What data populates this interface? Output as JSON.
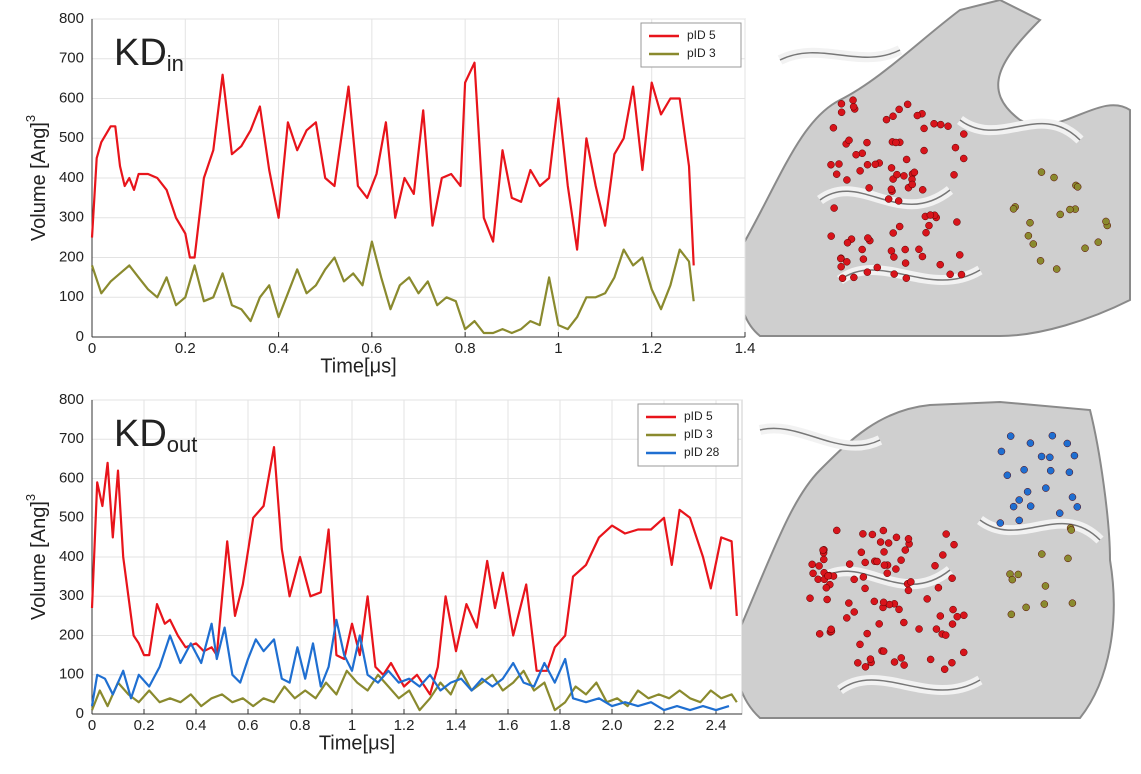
{
  "chart_data": [
    {
      "type": "line",
      "title": "KD",
      "title_subscript": "in",
      "xlabel": "Time[μs]",
      "ylabel": "Volume [Ang]",
      "ylabel_superscript": "3",
      "xlim": [
        0,
        1.4
      ],
      "ylim": [
        0,
        800
      ],
      "xticks": [
        0,
        0.2,
        0.4,
        0.6,
        0.8,
        1,
        1.2,
        1.4
      ],
      "yticks": [
        0,
        100,
        200,
        300,
        400,
        500,
        600,
        700,
        800
      ],
      "grid": true,
      "legend": "upper right",
      "series": [
        {
          "name": "pID 5",
          "color": "#e8141b",
          "x": [
            0,
            0.01,
            0.02,
            0.04,
            0.05,
            0.06,
            0.07,
            0.08,
            0.09,
            0.1,
            0.12,
            0.14,
            0.16,
            0.18,
            0.2,
            0.21,
            0.22,
            0.24,
            0.26,
            0.28,
            0.3,
            0.32,
            0.34,
            0.36,
            0.38,
            0.4,
            0.42,
            0.44,
            0.46,
            0.48,
            0.5,
            0.52,
            0.55,
            0.57,
            0.59,
            0.61,
            0.63,
            0.65,
            0.67,
            0.69,
            0.71,
            0.73,
            0.75,
            0.77,
            0.79,
            0.8,
            0.82,
            0.84,
            0.86,
            0.88,
            0.9,
            0.92,
            0.94,
            0.96,
            0.98,
            1,
            1.02,
            1.04,
            1.06,
            1.08,
            1.1,
            1.12,
            1.14,
            1.16,
            1.18,
            1.2,
            1.22,
            1.24,
            1.26,
            1.28,
            1.29
          ],
          "values": [
            250,
            450,
            490,
            530,
            530,
            430,
            380,
            400,
            370,
            410,
            410,
            400,
            370,
            300,
            260,
            200,
            200,
            400,
            470,
            660,
            460,
            480,
            520,
            580,
            420,
            300,
            540,
            470,
            520,
            540,
            400,
            380,
            630,
            380,
            350,
            410,
            540,
            300,
            400,
            360,
            570,
            280,
            400,
            410,
            380,
            640,
            690,
            300,
            240,
            470,
            350,
            340,
            420,
            380,
            400,
            600,
            380,
            220,
            500,
            380,
            280,
            460,
            500,
            630,
            420,
            640,
            560,
            600,
            600,
            430,
            180
          ]
        },
        {
          "name": "pID 3",
          "color": "#8a8a2e",
          "x": [
            0,
            0.02,
            0.04,
            0.06,
            0.08,
            0.1,
            0.12,
            0.14,
            0.16,
            0.18,
            0.2,
            0.22,
            0.24,
            0.26,
            0.28,
            0.3,
            0.32,
            0.34,
            0.36,
            0.38,
            0.4,
            0.42,
            0.44,
            0.46,
            0.48,
            0.5,
            0.52,
            0.54,
            0.56,
            0.58,
            0.6,
            0.62,
            0.64,
            0.66,
            0.68,
            0.7,
            0.72,
            0.74,
            0.76,
            0.78,
            0.8,
            0.82,
            0.84,
            0.86,
            0.88,
            0.9,
            0.92,
            0.94,
            0.96,
            0.98,
            1,
            1.02,
            1.04,
            1.06,
            1.08,
            1.1,
            1.12,
            1.14,
            1.16,
            1.18,
            1.2,
            1.22,
            1.24,
            1.26,
            1.28,
            1.29
          ],
          "values": [
            180,
            110,
            140,
            160,
            180,
            150,
            120,
            100,
            150,
            80,
            100,
            180,
            90,
            100,
            160,
            80,
            70,
            40,
            100,
            130,
            50,
            110,
            170,
            110,
            130,
            170,
            200,
            140,
            160,
            130,
            240,
            150,
            70,
            130,
            150,
            110,
            140,
            80,
            100,
            90,
            20,
            40,
            10,
            10,
            20,
            10,
            20,
            40,
            30,
            150,
            30,
            20,
            50,
            100,
            100,
            110,
            150,
            220,
            180,
            200,
            120,
            70,
            130,
            220,
            190,
            90
          ]
        }
      ]
    },
    {
      "type": "line",
      "title": "KD",
      "title_subscript": "out",
      "xlabel": "Time[μs]",
      "ylabel": "Volume [Ang]",
      "ylabel_superscript": "3",
      "xlim": [
        0,
        2.5
      ],
      "ylim": [
        0,
        800
      ],
      "xticks": [
        0,
        0.2,
        0.4,
        0.6,
        0.8,
        1,
        1.2,
        1.4,
        1.6,
        1.8,
        {
          "value": 2,
          "label": "2.0"
        },
        2.2,
        2.4
      ],
      "yticks": [
        0,
        100,
        200,
        300,
        400,
        500,
        600,
        700,
        800
      ],
      "grid": true,
      "legend": "upper right",
      "series": [
        {
          "name": "pID 5",
          "color": "#e8141b",
          "x": [
            0,
            0.02,
            0.04,
            0.06,
            0.08,
            0.1,
            0.12,
            0.14,
            0.16,
            0.18,
            0.2,
            0.22,
            0.25,
            0.28,
            0.3,
            0.33,
            0.36,
            0.4,
            0.43,
            0.46,
            0.48,
            0.52,
            0.55,
            0.58,
            0.62,
            0.66,
            0.7,
            0.73,
            0.76,
            0.8,
            0.84,
            0.88,
            0.91,
            0.94,
            0.97,
            1,
            1.03,
            1.06,
            1.09,
            1.12,
            1.15,
            1.2,
            1.25,
            1.3,
            1.33,
            1.36,
            1.4,
            1.44,
            1.48,
            1.52,
            1.55,
            1.58,
            1.62,
            1.67,
            1.71,
            1.75,
            1.78,
            1.82,
            1.85,
            1.9,
            1.95,
            2,
            2.05,
            2.1,
            2.15,
            2.2,
            2.23,
            2.26,
            2.3,
            2.35,
            2.38,
            2.42,
            2.46,
            2.48
          ],
          "values": [
            270,
            590,
            530,
            640,
            450,
            620,
            400,
            300,
            200,
            180,
            150,
            150,
            280,
            230,
            240,
            200,
            170,
            180,
            160,
            170,
            150,
            440,
            250,
            330,
            500,
            530,
            680,
            420,
            300,
            400,
            300,
            310,
            470,
            150,
            140,
            230,
            150,
            300,
            120,
            100,
            130,
            70,
            100,
            50,
            120,
            300,
            160,
            280,
            220,
            390,
            270,
            360,
            200,
            330,
            110,
            110,
            170,
            200,
            350,
            380,
            450,
            480,
            460,
            470,
            470,
            500,
            380,
            520,
            500,
            400,
            320,
            450,
            440,
            250
          ]
        },
        {
          "name": "pID 3",
          "color": "#8a8a2e",
          "x": [
            0,
            0.03,
            0.06,
            0.1,
            0.14,
            0.18,
            0.22,
            0.26,
            0.3,
            0.34,
            0.38,
            0.42,
            0.46,
            0.5,
            0.54,
            0.58,
            0.62,
            0.66,
            0.7,
            0.74,
            0.78,
            0.82,
            0.86,
            0.9,
            0.94,
            0.98,
            1.02,
            1.06,
            1.1,
            1.14,
            1.18,
            1.22,
            1.26,
            1.3,
            1.34,
            1.38,
            1.42,
            1.46,
            1.5,
            1.54,
            1.58,
            1.62,
            1.66,
            1.7,
            1.74,
            1.78,
            1.82,
            1.86,
            1.9,
            1.94,
            1.98,
            2.02,
            2.06,
            2.1,
            2.14,
            2.18,
            2.22,
            2.26,
            2.3,
            2.34,
            2.38,
            2.42,
            2.46,
            2.48
          ],
          "values": [
            10,
            60,
            20,
            80,
            50,
            30,
            60,
            30,
            40,
            30,
            50,
            20,
            40,
            50,
            30,
            40,
            20,
            40,
            30,
            70,
            40,
            60,
            40,
            80,
            50,
            110,
            80,
            60,
            100,
            70,
            40,
            60,
            10,
            40,
            80,
            50,
            110,
            60,
            80,
            100,
            60,
            80,
            110,
            60,
            80,
            10,
            30,
            70,
            50,
            80,
            30,
            40,
            20,
            60,
            40,
            50,
            40,
            60,
            40,
            30,
            60,
            40,
            50,
            30
          ]
        },
        {
          "name": "pID 28",
          "color": "#1f6fd1",
          "x": [
            0,
            0.02,
            0.05,
            0.08,
            0.12,
            0.15,
            0.18,
            0.22,
            0.26,
            0.3,
            0.34,
            0.38,
            0.42,
            0.46,
            0.48,
            0.51,
            0.54,
            0.57,
            0.6,
            0.63,
            0.66,
            0.7,
            0.73,
            0.76,
            0.79,
            0.82,
            0.85,
            0.88,
            0.91,
            0.94,
            0.97,
            1,
            1.03,
            1.06,
            1.1,
            1.14,
            1.18,
            1.22,
            1.26,
            1.3,
            1.34,
            1.38,
            1.42,
            1.46,
            1.5,
            1.54,
            1.58,
            1.62,
            1.66,
            1.7,
            1.74,
            1.78,
            1.82,
            1.85,
            1.9,
            1.95,
            2,
            2.05,
            2.1,
            2.15,
            2.2,
            2.25,
            2.3,
            2.35,
            2.4,
            2.45
          ],
          "values": [
            20,
            100,
            90,
            50,
            110,
            40,
            100,
            70,
            120,
            200,
            130,
            180,
            130,
            230,
            140,
            220,
            100,
            80,
            140,
            190,
            160,
            190,
            90,
            80,
            170,
            90,
            180,
            70,
            120,
            240,
            150,
            110,
            200,
            100,
            80,
            110,
            80,
            90,
            70,
            100,
            60,
            80,
            90,
            60,
            90,
            70,
            90,
            130,
            80,
            70,
            130,
            80,
            140,
            40,
            30,
            40,
            20,
            30,
            20,
            30,
            10,
            20,
            10,
            20,
            10,
            20
          ]
        }
      ]
    }
  ]
}
